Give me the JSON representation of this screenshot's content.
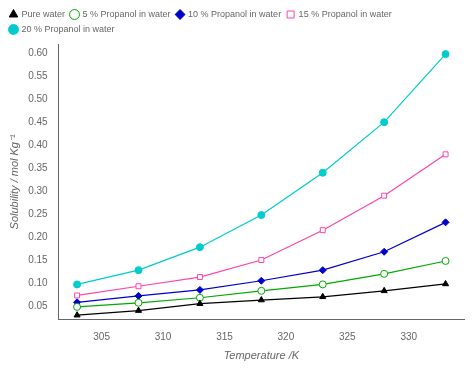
{
  "chart_data": {
    "type": "line",
    "xlabel": "Temperature /K",
    "ylabel": "Solubility / mol Kg⁻¹",
    "x": [
      303,
      308,
      313,
      318,
      323,
      328,
      333
    ],
    "xlim": [
      301.5,
      334.5
    ],
    "ylim": [
      0.02,
      0.62
    ],
    "xticks": [
      305,
      310,
      315,
      320,
      325,
      330
    ],
    "yticks": [
      0.05,
      {
        "value": 0.1,
        "label": "0.10"
      },
      0.15,
      {
        "value": 0.2,
        "label": "0.20"
      },
      0.25,
      {
        "value": 0.3,
        "label": "0.30"
      },
      0.35,
      {
        "value": 0.4,
        "label": "0.40"
      },
      0.45,
      {
        "value": 0.5,
        "label": "0.50"
      },
      0.55,
      {
        "value": 0.6,
        "label": "0.60"
      }
    ],
    "grid": false,
    "legend": "upper left",
    "series": [
      {
        "name": "Pure water",
        "color": "#000000",
        "marker": "triangle",
        "values": [
          0.03,
          0.04,
          0.055,
          0.063,
          0.07,
          0.083,
          0.098
        ]
      },
      {
        "name": "5 % Propanol in water",
        "color": "#00aa00",
        "marker": "circle_open",
        "values": [
          0.048,
          0.057,
          0.068,
          0.083,
          0.097,
          0.12,
          0.148
        ]
      },
      {
        "name": "10 % Propanol in water",
        "color": "#0000cc",
        "marker": "diamond",
        "values": [
          0.058,
          0.072,
          0.085,
          0.105,
          0.128,
          0.168,
          0.232
        ]
      },
      {
        "name": "15 % Propanol in water",
        "color": "#ff44aa",
        "marker": "square_open",
        "values": [
          0.073,
          0.093,
          0.113,
          0.15,
          0.215,
          0.29,
          0.38
        ]
      },
      {
        "name": "20 % Propanol in water",
        "color": "#00cccc",
        "marker": "circle",
        "values": [
          0.097,
          0.128,
          0.178,
          0.248,
          0.34,
          0.45,
          0.598
        ]
      }
    ]
  }
}
